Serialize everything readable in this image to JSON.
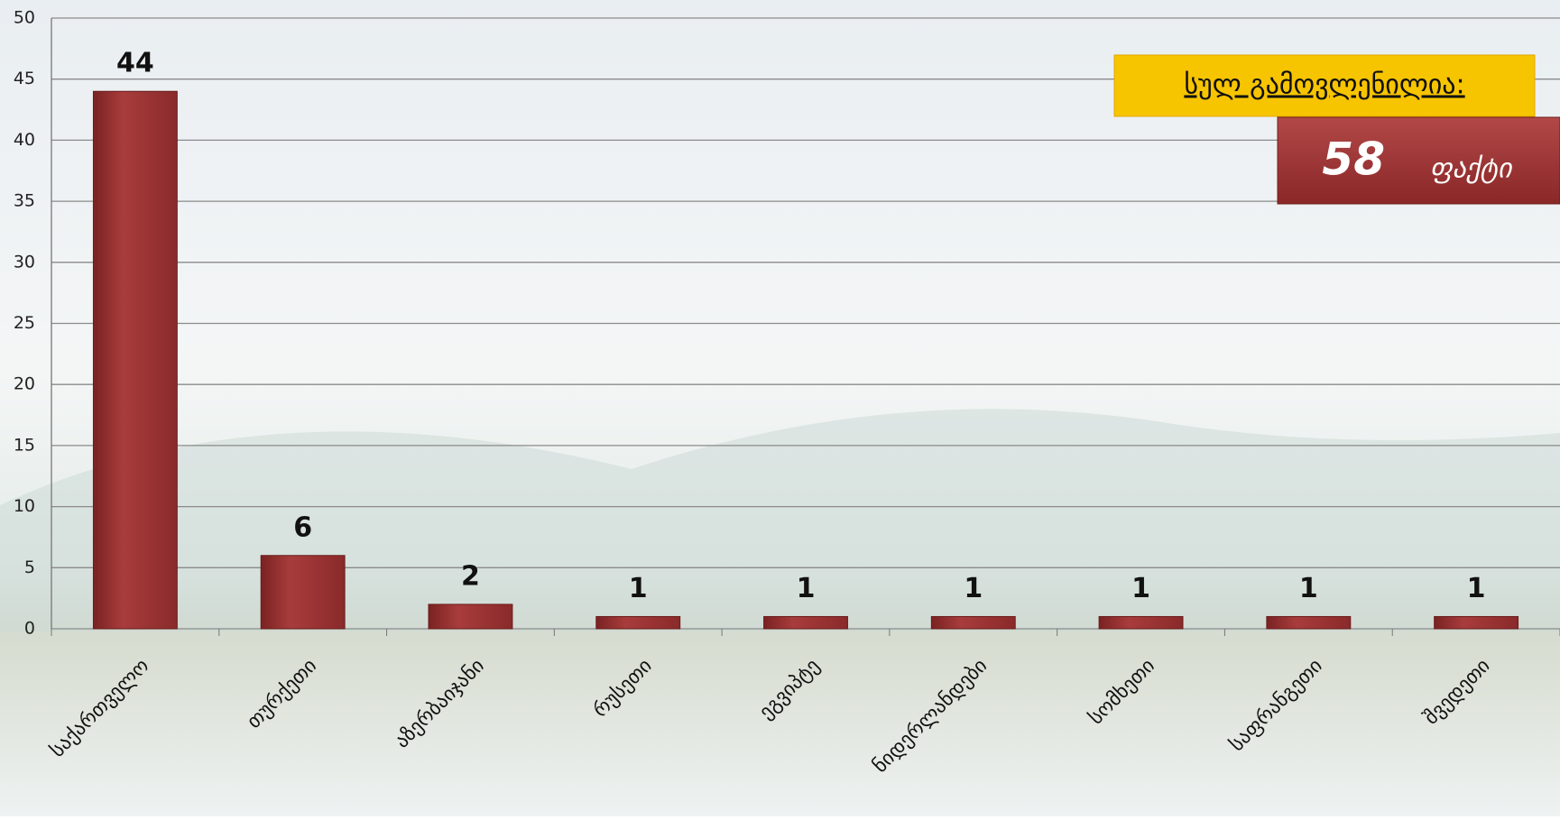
{
  "chart_data": {
    "type": "bar",
    "categories": [
      "საქართველო",
      "თურქეთი",
      "აზერბაიჯანი",
      "რუსეთი",
      "ეგვიპტე",
      "ნიდერლანდები",
      "სომხეთი",
      "საფრანგეთი",
      "შვედეთი"
    ],
    "values": [
      44,
      6,
      2,
      1,
      1,
      1,
      1,
      1,
      1
    ],
    "color": "#9e3636",
    "ylim": [
      0,
      50
    ],
    "yticks": [
      0,
      5,
      10,
      15,
      20,
      25,
      30,
      35,
      40,
      45,
      50
    ],
    "grid": true,
    "annotations": {
      "total_label": "სულ გამოვლენილია:",
      "total_value": 58,
      "total_unit": "ფაქტი"
    }
  }
}
